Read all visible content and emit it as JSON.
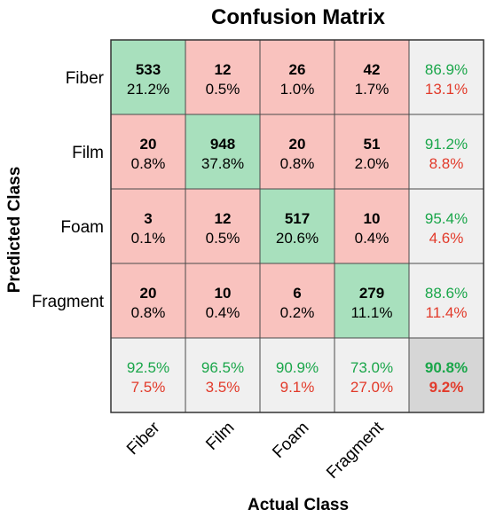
{
  "chart_data": {
    "type": "heatmap",
    "title": "Confusion Matrix",
    "xlabel": "Actual Class",
    "ylabel": "Predicted Class",
    "classes": [
      "Fiber",
      "Film",
      "Foam",
      "Fragment"
    ],
    "counts": [
      [
        533,
        12,
        26,
        42
      ],
      [
        20,
        948,
        20,
        51
      ],
      [
        3,
        12,
        517,
        10
      ],
      [
        20,
        10,
        6,
        279
      ]
    ],
    "percentages": [
      [
        "21.2%",
        "0.5%",
        "1.0%",
        "1.7%"
      ],
      [
        "0.8%",
        "37.8%",
        "0.8%",
        "2.0%"
      ],
      [
        "0.1%",
        "0.5%",
        "20.6%",
        "0.4%"
      ],
      [
        "0.8%",
        "0.4%",
        "0.2%",
        "11.1%"
      ]
    ],
    "row_summary": [
      {
        "correct": "86.9%",
        "incorrect": "13.1%"
      },
      {
        "correct": "91.2%",
        "incorrect": "8.8%"
      },
      {
        "correct": "95.4%",
        "incorrect": "4.6%"
      },
      {
        "correct": "88.6%",
        "incorrect": "11.4%"
      }
    ],
    "col_summary": [
      {
        "correct": "92.5%",
        "incorrect": "7.5%"
      },
      {
        "correct": "96.5%",
        "incorrect": "3.5%"
      },
      {
        "correct": "90.9%",
        "incorrect": "9.1%"
      },
      {
        "correct": "73.0%",
        "incorrect": "27.0%"
      }
    ],
    "overall": {
      "correct": "90.8%",
      "incorrect": "9.2%"
    },
    "colors": {
      "diagonal": "#a8e0bd",
      "off_diagonal": "#f9c2be",
      "summary": "#f0f0f0",
      "overall": "#d6d6d6",
      "correct_text": "#1aa64a",
      "incorrect_text": "#e23a2a"
    }
  }
}
